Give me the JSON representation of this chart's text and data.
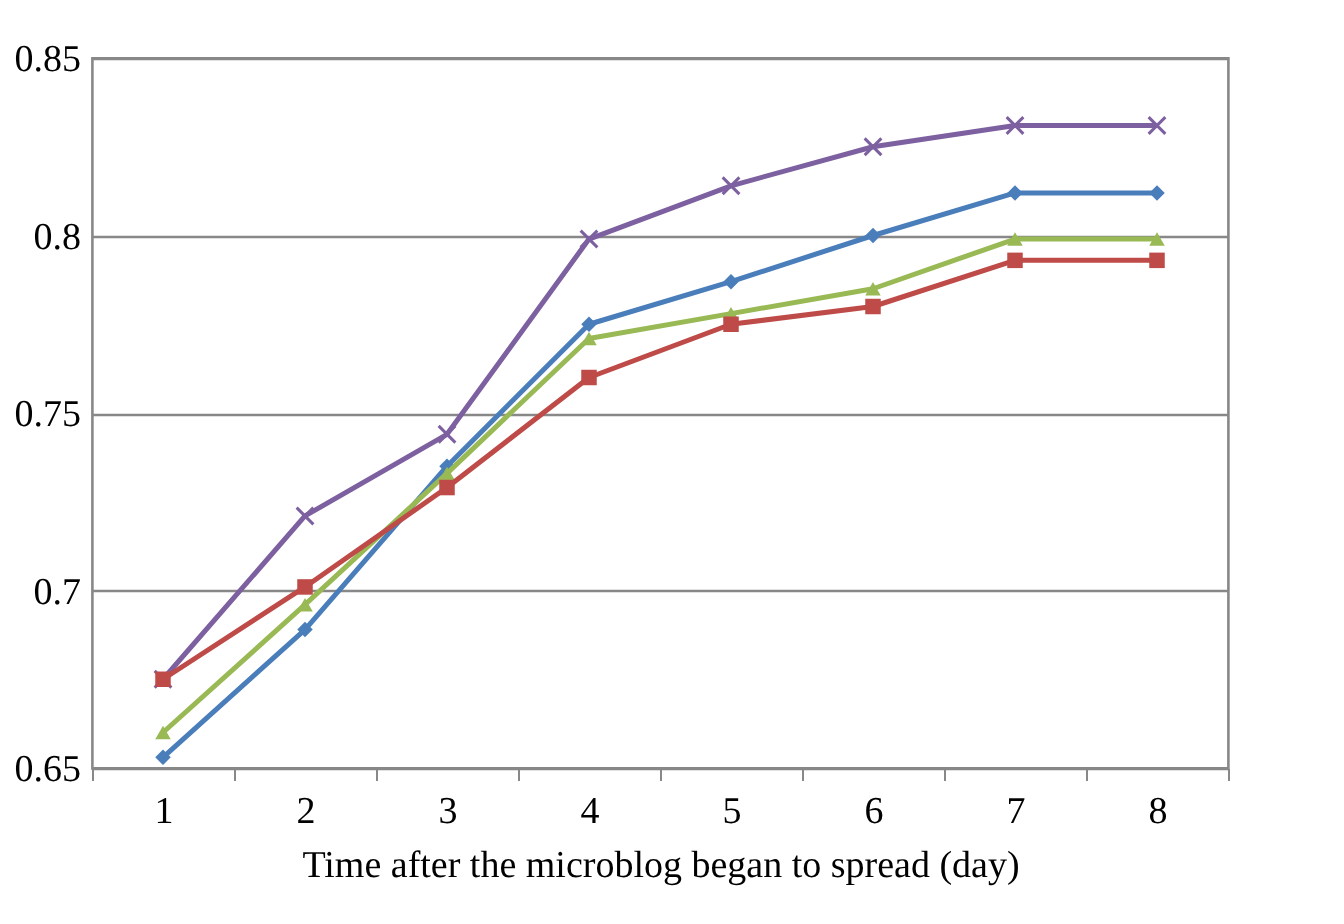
{
  "chart_data": {
    "type": "line",
    "xlabel": "Time after the microblog began to spread (day)",
    "categories": [
      "1",
      "2",
      "3",
      "4",
      "5",
      "6",
      "7",
      "8"
    ],
    "series": [
      {
        "color": "#7d60a0",
        "marker": "cross",
        "values": [
          0.675,
          0.721,
          0.744,
          0.799,
          0.814,
          0.825,
          0.831,
          0.831
        ]
      },
      {
        "color": "#4a7ebb",
        "marker": "diamond",
        "values": [
          0.653,
          0.689,
          0.735,
          0.775,
          0.787,
          0.8,
          0.812,
          0.812
        ]
      },
      {
        "color": "#98b954",
        "marker": "triangle",
        "values": [
          0.66,
          0.696,
          0.733,
          0.771,
          0.778,
          0.785,
          0.799,
          0.799
        ]
      },
      {
        "color": "#be4b48",
        "marker": "square",
        "values": [
          0.675,
          0.701,
          0.729,
          0.76,
          0.775,
          0.78,
          0.793,
          0.793
        ]
      }
    ],
    "ylim": [
      0.65,
      0.85
    ],
    "yticks": [
      0.65,
      0.7,
      0.75,
      0.8,
      0.85
    ],
    "grid": "y"
  }
}
